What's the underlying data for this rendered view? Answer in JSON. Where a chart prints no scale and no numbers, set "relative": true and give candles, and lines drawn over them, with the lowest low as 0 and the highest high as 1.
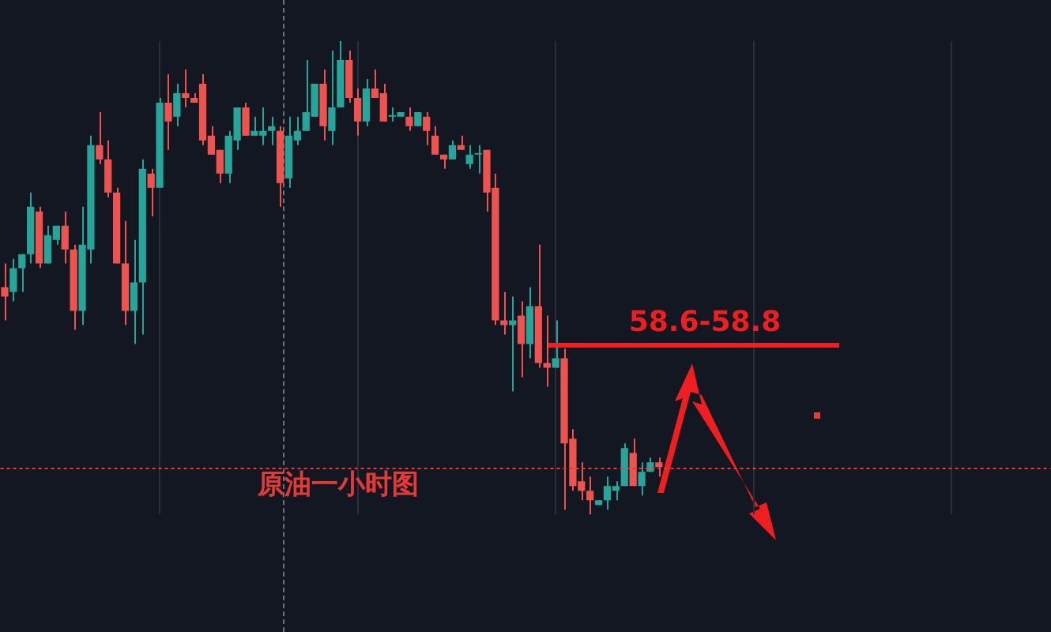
{
  "chart_data": {
    "type": "candlestick",
    "title": "原油一小时图",
    "relative": true,
    "grid": "x",
    "legend": false,
    "annotations": [
      "58.6-58.8"
    ],
    "categories": [
      null,
      null,
      null,
      null,
      null,
      null,
      null,
      null,
      null,
      null,
      null,
      null,
      null,
      null,
      null,
      null,
      null,
      null,
      null,
      null,
      null,
      null,
      null,
      null,
      null,
      null,
      null,
      null,
      null,
      null,
      null,
      null,
      null,
      null,
      null,
      null,
      null,
      null,
      null,
      null,
      null,
      null,
      null,
      null,
      null,
      null,
      null,
      null,
      null,
      null,
      null,
      null,
      null,
      null,
      null,
      null,
      null,
      null,
      null,
      null,
      null,
      null,
      null,
      null,
      null,
      null,
      null,
      null,
      null,
      null,
      null,
      null,
      null,
      null,
      null,
      null,
      null,
      null,
      null,
      null,
      null,
      null,
      null,
      null,
      null,
      null,
      null,
      null,
      null,
      null,
      null,
      null,
      null,
      null,
      null,
      null,
      null,
      null,
      null,
      null,
      null,
      null,
      null,
      null,
      null,
      null,
      null,
      null,
      null,
      null,
      null,
      null,
      null,
      null,
      null,
      null,
      null,
      null,
      null,
      null,
      null,
      null
    ],
    "ohlc": [
      [
        0.48,
        0.53,
        0.41,
        0.46
      ],
      [
        0.47,
        0.54,
        0.45,
        0.52
      ],
      [
        0.52,
        0.55,
        0.47,
        0.55
      ],
      [
        0.55,
        0.68,
        0.53,
        0.65
      ],
      [
        0.64,
        0.65,
        0.52,
        0.53
      ],
      [
        0.53,
        0.61,
        0.53,
        0.59
      ],
      [
        0.58,
        0.61,
        0.57,
        0.61
      ],
      [
        0.61,
        0.64,
        0.53,
        0.56
      ],
      [
        0.56,
        0.57,
        0.39,
        0.43
      ],
      [
        0.43,
        0.65,
        0.4,
        0.57
      ],
      [
        0.56,
        0.8,
        0.53,
        0.78
      ],
      [
        0.78,
        0.85,
        0.74,
        0.75
      ],
      [
        0.75,
        0.79,
        0.67,
        0.68
      ],
      [
        0.68,
        0.69,
        0.53,
        0.53
      ],
      [
        0.53,
        0.62,
        0.4,
        0.43
      ],
      [
        0.43,
        0.58,
        0.36,
        0.49
      ],
      [
        0.49,
        0.75,
        0.38,
        0.73
      ],
      [
        0.72,
        0.73,
        0.63,
        0.69
      ],
      [
        0.69,
        0.88,
        0.69,
        0.87
      ],
      [
        0.87,
        0.93,
        0.77,
        0.83
      ],
      [
        0.84,
        0.91,
        0.82,
        0.89
      ],
      [
        0.89,
        0.94,
        0.86,
        0.88
      ],
      [
        0.88,
        0.89,
        0.87,
        0.87
      ],
      [
        0.91,
        0.93,
        0.78,
        0.79
      ],
      [
        0.8,
        0.82,
        0.76,
        0.76
      ],
      [
        0.77,
        0.77,
        0.7,
        0.72
      ],
      [
        0.72,
        0.81,
        0.7,
        0.8
      ],
      [
        0.79,
        0.86,
        0.77,
        0.86
      ],
      [
        0.86,
        0.87,
        0.8,
        0.8
      ],
      [
        0.8,
        0.84,
        0.8,
        0.81
      ],
      [
        0.8,
        0.86,
        0.78,
        0.81
      ],
      [
        0.81,
        0.84,
        0.78,
        0.82
      ],
      [
        0.81,
        0.82,
        0.65,
        0.7
      ],
      [
        0.71,
        0.84,
        0.69,
        0.8
      ],
      [
        0.79,
        0.84,
        0.78,
        0.81
      ],
      [
        0.81,
        0.96,
        0.81,
        0.85
      ],
      [
        0.84,
        0.91,
        0.84,
        0.91
      ],
      [
        0.91,
        0.94,
        0.79,
        0.82
      ],
      [
        0.81,
        0.98,
        0.78,
        0.86
      ],
      [
        0.86,
        1,
        0.86,
        0.96
      ],
      [
        0.96,
        0.98,
        0.87,
        0.88
      ],
      [
        0.88,
        0.9,
        0.8,
        0.83
      ],
      [
        0.83,
        0.92,
        0.82,
        0.9
      ],
      [
        0.9,
        0.94,
        0.88,
        0.88
      ],
      [
        0.89,
        0.91,
        0.83,
        0.83
      ],
      [
        0.84,
        0.86,
        0.83,
        0.84
      ],
      [
        0.84,
        0.85,
        0.84,
        0.85
      ],
      [
        0.84,
        0.86,
        0.81,
        0.82
      ],
      [
        0.82,
        0.85,
        0.82,
        0.85
      ],
      [
        0.84,
        0.85,
        0.78,
        0.81
      ],
      [
        0.8,
        0.82,
        0.76,
        0.76
      ],
      [
        0.76,
        0.76,
        0.73,
        0.75
      ],
      [
        0.75,
        0.79,
        0.75,
        0.78
      ],
      [
        0.78,
        0.8,
        0.77,
        0.77
      ],
      [
        0.74,
        0.78,
        0.73,
        0.76
      ],
      [
        0.76,
        0.78,
        0.72,
        0.76
      ],
      [
        0.77,
        0.77,
        0.64,
        0.68
      ],
      [
        0.69,
        0.72,
        0.4,
        0.41
      ],
      [
        0.41,
        0.47,
        0.38,
        0.4
      ],
      [
        0.4,
        0.46,
        0.26,
        0.41
      ],
      [
        0.42,
        0.45,
        0.29,
        0.36
      ],
      [
        0.36,
        0.48,
        0.33,
        0.44
      ],
      [
        0.44,
        0.57,
        0.31,
        0.32
      ],
      [
        0.32,
        0.42,
        0.27,
        0.31
      ],
      [
        0.31,
        0.41,
        0.31,
        0.33
      ],
      [
        0.33,
        0.35,
        0.01,
        0.15
      ],
      [
        0.16,
        0.18,
        0.05,
        0.06
      ],
      [
        0.07,
        0.11,
        0.03,
        0.05
      ],
      [
        0.05,
        0.08,
        0,
        0.03
      ],
      [
        0.02,
        0.03,
        0.02,
        0.03
      ],
      [
        0.03,
        0.08,
        0.01,
        0.06
      ],
      [
        0.05,
        0.07,
        0.03,
        0.06
      ],
      [
        0.06,
        0.15,
        0.06,
        0.14
      ],
      [
        0.13,
        0.16,
        0.06,
        0.06
      ],
      [
        0.06,
        0.11,
        0.04,
        0.09
      ],
      [
        0.09,
        0.12,
        0.09,
        0.11
      ],
      [
        0.11,
        0.12,
        0.08,
        0.1
      ],
      null,
      null,
      null,
      null,
      null,
      null,
      null,
      null,
      null,
      null,
      null,
      null,
      null,
      null,
      null,
      null,
      null,
      null,
      null,
      null,
      null,
      null,
      null,
      null,
      null,
      null,
      null,
      null,
      null,
      null,
      null,
      null,
      null,
      null,
      null,
      null,
      null,
      null,
      null,
      null,
      null,
      null,
      null,
      null,
      null
    ],
    "ref_lines": [
      {
        "axis": "y",
        "value": 0.36,
        "color": "#f01e1e"
      },
      {
        "axis": "y",
        "value": 0.1,
        "color": "#e53935",
        "line_style": "dotted"
      }
    ]
  }
}
